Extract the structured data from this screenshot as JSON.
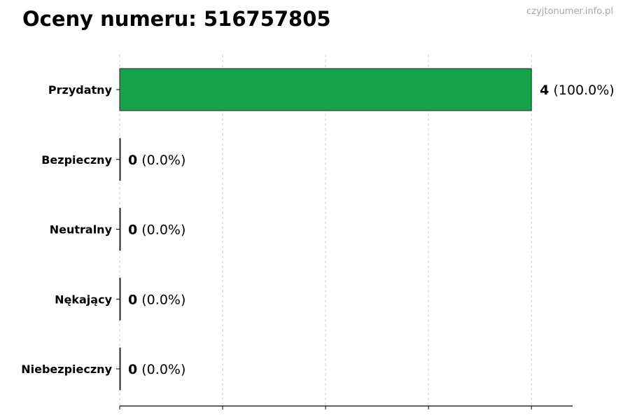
{
  "title": "Oceny numeru: 516757805",
  "watermark": "czyjtonumer.info.pl",
  "chart_data": {
    "type": "bar",
    "orientation": "horizontal",
    "title": "Oceny numeru: 516757805",
    "categories": [
      "Przydatny",
      "Bezpieczny",
      "Neutralny",
      "Nękający",
      "Niebezpieczny"
    ],
    "values": [
      4,
      0,
      0,
      0,
      0
    ],
    "labels": [
      {
        "count": "4",
        "pct": "(100.0%)"
      },
      {
        "count": "0",
        "pct": "(0.0%)"
      },
      {
        "count": "0",
        "pct": "(0.0%)"
      },
      {
        "count": "0",
        "pct": "(0.0%)"
      },
      {
        "count": "0",
        "pct": "(0.0%)"
      }
    ],
    "xlabel": "",
    "ylabel": "",
    "xlim": [
      0,
      4.4
    ],
    "xticks": [
      0,
      1,
      2,
      3,
      4
    ],
    "xtick_labels_shown": false,
    "grid": "x-dashed",
    "bar_color": "#16a34a",
    "legend": "none"
  }
}
